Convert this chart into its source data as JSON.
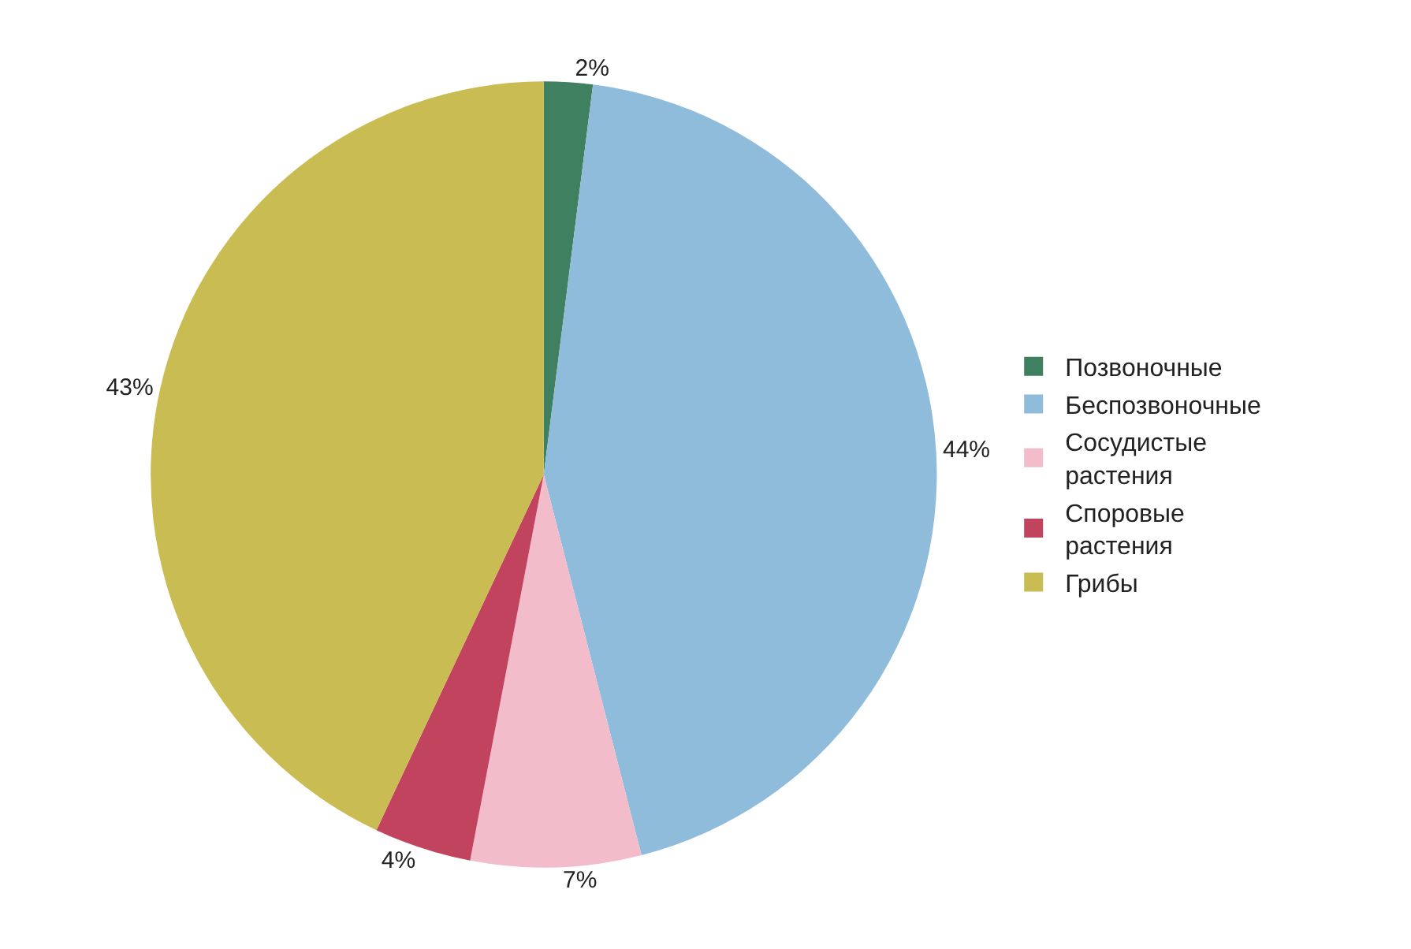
{
  "chart_data": {
    "type": "pie",
    "categories": [
      "Позвоночные",
      "Беспозвоночные",
      "Сосудистые растения",
      "Споровые растения",
      "Грибы"
    ],
    "values": [
      2,
      44,
      7,
      4,
      43
    ],
    "value_labels": [
      "2%",
      "44%",
      "7%",
      "4%",
      "43%"
    ],
    "colors": [
      "#3f8060",
      "#90bcdc",
      "#f2bccb",
      "#c2435e",
      "#c9bc52"
    ],
    "legend": "right"
  }
}
